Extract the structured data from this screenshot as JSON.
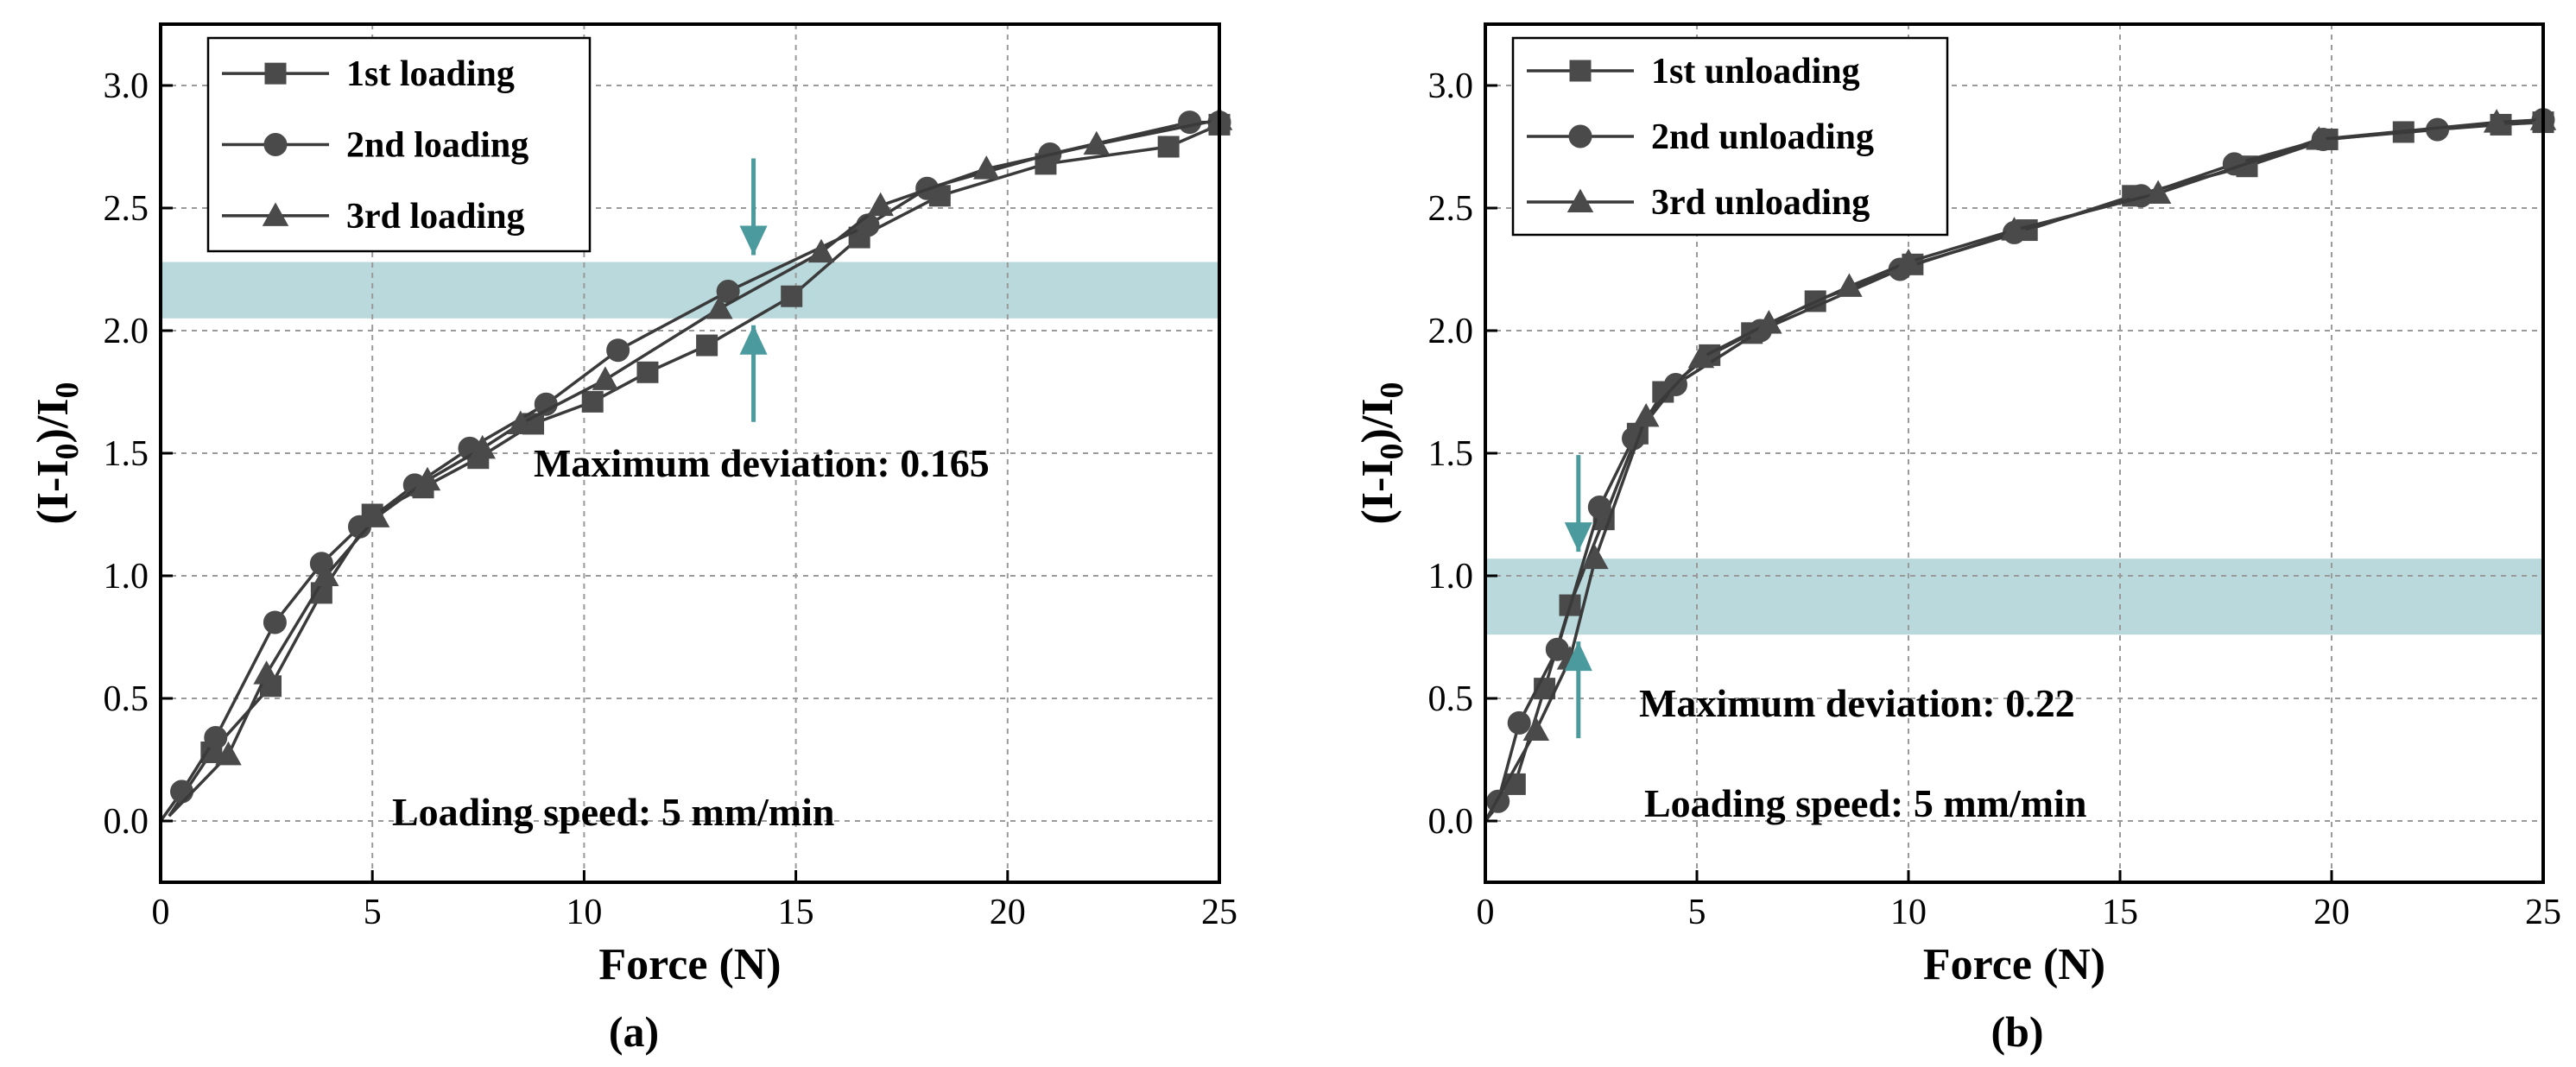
{
  "chart_data": [
    {
      "type": "line",
      "panel_label": "(a)",
      "xlabel": "Force (N)",
      "ylabel": {
        "base": "(I-I",
        "sub1": "0",
        "mid": ")/I",
        "sub2": "0"
      },
      "xlim": [
        0,
        25
      ],
      "ylim": [
        -0.25,
        3.25
      ],
      "xticks": [
        "0",
        "5",
        "10",
        "15",
        "20",
        "25"
      ],
      "yticks": [
        "0.0",
        "0.5",
        "1.0",
        "1.5",
        "2.0",
        "2.5",
        "3.0"
      ],
      "band": [
        2.05,
        2.28
      ],
      "band_color": "#b9d9dd",
      "arrow_color": "#4a9a9e",
      "arrow_x": 14.0,
      "annotations": [
        "Maximum deviation: 0.165",
        "Loading speed: 5 mm/min"
      ],
      "series": [
        {
          "name": "1st loading",
          "marker": "square",
          "x": [
            0.2,
            1.2,
            2.6,
            3.8,
            5.0,
            6.2,
            7.5,
            8.8,
            10.2,
            11.5,
            12.9,
            14.9,
            16.5,
            18.4,
            20.9,
            23.8,
            25.0
          ],
          "values": [
            0.02,
            0.28,
            0.55,
            0.93,
            1.25,
            1.36,
            1.48,
            1.62,
            1.71,
            1.83,
            1.94,
            2.14,
            2.38,
            2.55,
            2.68,
            2.75,
            2.84
          ]
        },
        {
          "name": "2nd loading",
          "marker": "circle",
          "x": [
            0.0,
            0.5,
            1.3,
            2.7,
            3.8,
            4.7,
            6.0,
            7.3,
            9.1,
            10.8,
            13.4,
            16.7,
            18.1,
            21.0,
            24.3,
            25.0
          ],
          "values": [
            0.0,
            0.12,
            0.34,
            0.81,
            1.05,
            1.2,
            1.37,
            1.52,
            1.7,
            1.92,
            2.16,
            2.43,
            2.58,
            2.72,
            2.85,
            2.85
          ]
        },
        {
          "name": "3rd loading",
          "marker": "triangle",
          "x": [
            0.2,
            1.6,
            2.5,
            3.9,
            5.1,
            6.3,
            7.6,
            8.5,
            10.5,
            13.2,
            15.6,
            17.0,
            19.5,
            22.1,
            25.0
          ],
          "values": [
            0.02,
            0.27,
            0.6,
            1.0,
            1.24,
            1.39,
            1.52,
            1.62,
            1.8,
            2.09,
            2.32,
            2.51,
            2.66,
            2.76,
            2.86
          ]
        }
      ]
    },
    {
      "type": "line",
      "panel_label": "(b)",
      "xlabel": "Force (N)",
      "ylabel": {
        "base": "(I-I",
        "sub1": "0",
        "mid": ")/I",
        "sub2": "0"
      },
      "xlim": [
        0,
        25
      ],
      "ylim": [
        -0.25,
        3.25
      ],
      "xticks": [
        "0",
        "5",
        "10",
        "15",
        "20",
        "25"
      ],
      "yticks": [
        "0.0",
        "0.5",
        "1.0",
        "1.5",
        "2.0",
        "2.5",
        "3.0"
      ],
      "band": [
        0.76,
        1.07
      ],
      "band_color": "#b9d9dd",
      "arrow_color": "#4a9a9e",
      "arrow_x": 2.2,
      "annotations": [
        "Maximum deviation: 0.22",
        "Loading speed: 5 mm/min"
      ],
      "series": [
        {
          "name": "1st unloading",
          "marker": "square",
          "x": [
            0.0,
            0.7,
            1.4,
            2.0,
            2.8,
            3.6,
            4.2,
            5.3,
            6.3,
            7.8,
            10.1,
            12.8,
            15.3,
            18.0,
            19.9,
            21.7,
            24.0,
            25.0
          ],
          "values": [
            0.0,
            0.15,
            0.54,
            0.88,
            1.23,
            1.58,
            1.75,
            1.9,
            1.99,
            2.12,
            2.27,
            2.41,
            2.55,
            2.67,
            2.78,
            2.81,
            2.84,
            2.85
          ]
        },
        {
          "name": "2nd unloading",
          "marker": "circle",
          "x": [
            0.0,
            0.3,
            0.8,
            1.7,
            2.7,
            3.5,
            4.5,
            6.5,
            9.8,
            12.5,
            15.5,
            17.7,
            19.8,
            22.5,
            25.0
          ],
          "values": [
            0.0,
            0.08,
            0.4,
            0.7,
            1.28,
            1.56,
            1.78,
            2.0,
            2.25,
            2.4,
            2.55,
            2.68,
            2.78,
            2.82,
            2.86
          ]
        },
        {
          "name": "3rd unloading",
          "marker": "triangle",
          "x": [
            0.0,
            1.2,
            2.0,
            2.6,
            3.8,
            5.1,
            6.7,
            8.6,
            10.0,
            12.5,
            15.9,
            19.7,
            23.9,
            25.0
          ],
          "values": [
            0.0,
            0.37,
            0.66,
            1.07,
            1.65,
            1.89,
            2.03,
            2.18,
            2.28,
            2.41,
            2.56,
            2.78,
            2.85,
            2.86
          ]
        }
      ]
    }
  ]
}
